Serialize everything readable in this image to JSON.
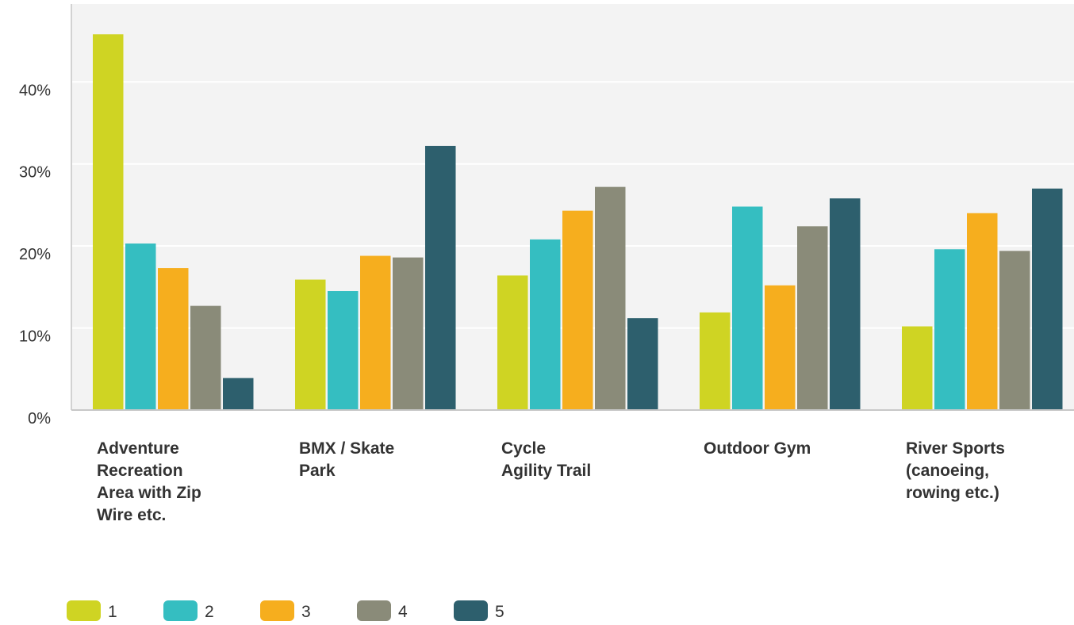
{
  "chart_data": {
    "type": "bar",
    "categories": [
      [
        "Adventure",
        "Recreation",
        "Area with Zip",
        "Wire etc."
      ],
      [
        "BMX / Skate",
        "Park"
      ],
      [
        "Cycle",
        "Agility Trail"
      ],
      [
        "Outdoor Gym"
      ],
      [
        "River Sports",
        "(canoeing,",
        "rowing etc.)"
      ]
    ],
    "series": [
      {
        "name": "1",
        "color": "#cfd423",
        "values": [
          45.8,
          15.9,
          16.4,
          11.9,
          10.2
        ]
      },
      {
        "name": "2",
        "color": "#35bec1",
        "values": [
          20.3,
          14.5,
          20.8,
          24.8,
          19.6
        ]
      },
      {
        "name": "3",
        "color": "#f6ae1e",
        "values": [
          17.3,
          18.8,
          24.3,
          15.2,
          24.0
        ]
      },
      {
        "name": "4",
        "color": "#8a8b79",
        "values": [
          12.7,
          18.6,
          27.2,
          22.4,
          19.4
        ]
      },
      {
        "name": "5",
        "color": "#2d5f6d",
        "values": [
          3.9,
          32.2,
          11.2,
          25.8,
          27.0
        ]
      }
    ],
    "yticks": [
      "0%",
      "10%",
      "20%",
      "30%",
      "40%"
    ],
    "ytick_values": [
      0,
      10,
      20,
      30,
      40
    ],
    "ylim": [
      0,
      49.5
    ],
    "title": "",
    "xlabel": "",
    "ylabel": "",
    "grid": true,
    "legend_position": "bottom-left"
  }
}
